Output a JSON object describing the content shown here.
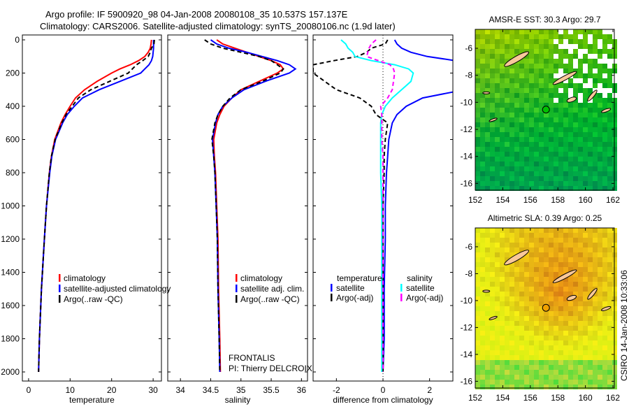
{
  "title": {
    "line1": "Argo profile: IF 5900920_98 04-Jan-2008 20080108_35 10.537S 157.137E",
    "line2": "Climatology: CARS2006. Satellite-adjusted climatology: synTS_20080106.nc (1.9d later)"
  },
  "credit": "CSIRO 14-Jan-2008 10:33:06",
  "float_info": {
    "project": "FRONTALIS",
    "pi": "PI: Thierry DELCROIX"
  },
  "colors": {
    "clim": "#ff0000",
    "sat": "#0000ff",
    "argo": "#000000",
    "sal_sat": "#00ffff",
    "sal_argo": "#ff00ff"
  },
  "chart_data": [
    {
      "type": "line",
      "xlabel": "temperature",
      "ylabel": "",
      "xlim": [
        -1.5,
        32
      ],
      "ylim": [
        2050,
        -50
      ],
      "xticks": [
        "0",
        "10",
        "20",
        "30"
      ],
      "xtick_values": [
        0,
        10,
        20,
        30
      ],
      "yticks": [
        "0",
        "200",
        "400",
        "600",
        "800",
        "1000",
        "1200",
        "1400",
        "1600",
        "1800",
        "2000"
      ],
      "ytick_values": [
        0,
        200,
        400,
        600,
        800,
        1000,
        1200,
        1400,
        1600,
        1800,
        2000
      ],
      "depth": [
        0,
        25,
        50,
        75,
        100,
        125,
        150,
        175,
        200,
        250,
        300,
        350,
        400,
        450,
        500,
        600,
        700,
        800,
        1000,
        1200,
        1500,
        1800,
        2000
      ],
      "series": [
        {
          "name": "climatology",
          "color": "#ff0000",
          "dashed": false,
          "values": [
            29.6,
            29.5,
            29.3,
            28.8,
            28,
            26.5,
            24.5,
            22,
            20,
            16.5,
            13.5,
            11.3,
            10,
            8.8,
            7.8,
            6.3,
            5.5,
            5,
            4.3,
            3.8,
            3.1,
            2.6,
            2.4
          ]
        },
        {
          "name": "satellite-adjusted climatology",
          "color": "#0000ff",
          "dashed": false,
          "values": [
            30.1,
            30.1,
            30.1,
            30,
            29.9,
            29.6,
            29,
            28,
            27,
            22,
            17,
            13,
            11,
            9.3,
            8.2,
            6.5,
            5.6,
            5.1,
            4.3,
            3.8,
            3.1,
            2.6,
            2.4
          ]
        },
        {
          "name": "Argo(..raw -QC)",
          "color": "#000000",
          "dashed": true,
          "values": [
            30.3,
            30.2,
            29.6,
            29.3,
            28.8,
            27.5,
            26,
            25,
            24,
            19.5,
            15,
            12,
            10.5,
            9,
            8,
            6.4,
            5.5,
            5,
            4.3,
            3.8,
            3.1,
            2.6,
            2.4
          ]
        }
      ]
    },
    {
      "type": "line",
      "xlabel": "salinity",
      "ylabel": "",
      "xlim": [
        33.79,
        36.1
      ],
      "ylim": [
        2050,
        -50
      ],
      "xticks": [
        "34",
        "34.5",
        "35",
        "35.5",
        "36"
      ],
      "xtick_values": [
        34,
        34.5,
        35,
        35.5,
        36
      ],
      "depth": [
        0,
        25,
        50,
        75,
        100,
        125,
        150,
        175,
        200,
        250,
        300,
        350,
        400,
        450,
        500,
        600,
        700,
        800,
        1000,
        1200,
        1500,
        1800,
        2000
      ],
      "series": [
        {
          "name": "climatology",
          "color": "#ff0000",
          "dashed": false,
          "values": [
            34.6,
            34.7,
            34.9,
            35.1,
            35.3,
            35.5,
            35.65,
            35.7,
            35.6,
            35.3,
            35.0,
            34.85,
            34.72,
            34.65,
            34.6,
            34.55,
            34.56,
            34.58,
            34.6,
            34.62,
            34.63,
            34.65,
            34.66
          ]
        },
        {
          "name": "satellite adj. clim.",
          "color": "#0000ff",
          "dashed": false,
          "values": [
            34.5,
            34.6,
            34.8,
            35.1,
            35.35,
            35.6,
            35.8,
            35.9,
            35.8,
            35.4,
            35.05,
            34.85,
            34.7,
            34.62,
            34.58,
            34.53,
            34.55,
            34.57,
            34.59,
            34.61,
            34.62,
            34.64,
            34.65
          ]
        },
        {
          "name": "Argo(..raw -QC)",
          "color": "#000000",
          "dashed": true,
          "values": [
            34.4,
            34.5,
            34.7,
            35.0,
            35.3,
            35.5,
            35.6,
            35.7,
            35.65,
            35.35,
            35.0,
            34.82,
            34.7,
            34.62,
            34.57,
            34.52,
            34.55,
            34.57,
            34.59,
            34.61,
            34.62,
            34.64,
            34.65
          ]
        }
      ]
    },
    {
      "type": "line",
      "xlabel": "difference from climatology",
      "ylabel": "",
      "xlim": [
        -3,
        3
      ],
      "ylim": [
        2050,
        -50
      ],
      "xticks": [
        "-2",
        "0",
        "2"
      ],
      "xtick_values": [
        -2,
        0,
        2
      ],
      "legend_headers": {
        "temperature": "temperature",
        "salinity": "salinity"
      },
      "depth": [
        0,
        25,
        50,
        75,
        100,
        125,
        150,
        175,
        200,
        250,
        300,
        350,
        400,
        450,
        500,
        600,
        700,
        800,
        1000,
        1200,
        1500,
        1800,
        2000
      ],
      "series": [
        {
          "name": "satellite",
          "group": "temperature",
          "color": "#0000ff",
          "dashed": false,
          "values": [
            0.5,
            0.6,
            0.8,
            1.2,
            1.9,
            3.1,
            4.5,
            6,
            7,
            5.5,
            3.5,
            1.7,
            1.0,
            0.6,
            0.4,
            0.25,
            0.2,
            0.15,
            0.1,
            0.1,
            0.05,
            0.05,
            0
          ]
        },
        {
          "name": "Argo(-adj)",
          "group": "temperature",
          "color": "#000000",
          "dashed": true,
          "values": [
            0.2,
            0.1,
            -0.5,
            -0.7,
            -1.1,
            -2.1,
            -3,
            -3,
            -3,
            -2.5,
            -2,
            -1.0,
            -0.5,
            -0.3,
            0.2,
            0.1,
            0.05,
            0.05,
            0,
            0,
            0,
            0,
            0
          ]
        },
        {
          "name": "satellite",
          "group": "salinity",
          "color": "#00ffff",
          "dashed": false,
          "values": [
            -1.8,
            -1.6,
            -1.5,
            -1.3,
            -1.2,
            -0.5,
            0.5,
            1.1,
            1.3,
            1.2,
            0.8,
            0.4,
            0.1,
            -0.05,
            -0.1,
            -0.1,
            -0.1,
            -0.1,
            -0.05,
            -0.05,
            -0.05,
            -0.05,
            -0.05
          ]
        },
        {
          "name": "Argo(-adj)",
          "group": "salinity",
          "color": "#ff00ff",
          "dashed": true,
          "values": [
            -0.3,
            -0.5,
            -0.6,
            -0.65,
            -0.7,
            -0.2,
            0.3,
            0.45,
            0.5,
            0.45,
            0.4,
            0.2,
            -0.1,
            -0.05,
            -0.05,
            -0.05,
            0,
            0,
            0,
            0,
            0,
            0,
            0
          ]
        }
      ]
    },
    {
      "type": "heatmap",
      "title": "AMSR-E SST: 30.3 Argo: 29.7",
      "xticks": [
        "152",
        "154",
        "156",
        "158",
        "160",
        "162"
      ],
      "xtick_values": [
        152,
        154,
        156,
        158,
        160,
        162
      ],
      "yticks": [
        "-6",
        "-8",
        "-10",
        "-12",
        "-14",
        "-16"
      ],
      "ytick_values": [
        -6,
        -8,
        -10,
        -12,
        -14,
        -16
      ],
      "xlim": [
        152,
        162.1
      ],
      "ylim": [
        -16.5,
        -4.6
      ],
      "argo_position": [
        157.137,
        -10.537
      ]
    },
    {
      "type": "heatmap",
      "title": "Altimetric SLA: 0.39 Argo: 0.25",
      "xticks": [
        "152",
        "154",
        "156",
        "158",
        "160",
        "162"
      ],
      "xtick_values": [
        152,
        154,
        156,
        158,
        160,
        162
      ],
      "yticks": [
        "-6",
        "-8",
        "-10",
        "-12",
        "-14",
        "-16"
      ],
      "ytick_values": [
        -6,
        -8,
        -10,
        -12,
        -14,
        -16
      ],
      "xlim": [
        152,
        162.1
      ],
      "ylim": [
        -16.5,
        -4.6
      ],
      "argo_position": [
        157.137,
        -10.537
      ]
    }
  ]
}
